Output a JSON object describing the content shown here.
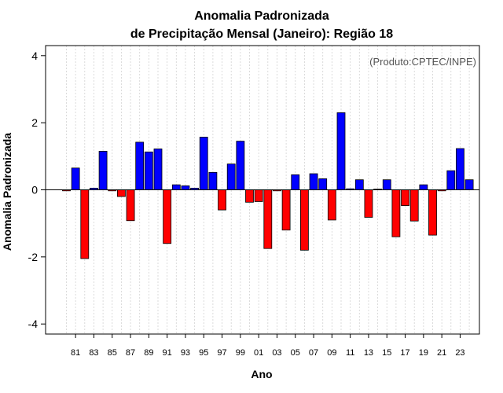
{
  "colors": {
    "positive": "#0000ff",
    "negative": "#ff0000",
    "grid": "#d3d3d3",
    "source_text": "#555555"
  },
  "chart_data": {
    "type": "bar",
    "title": "Anomalia Padronizada",
    "subtitle": "de Precipitação Mensal (Janeiro): Região 18",
    "xlabel": "Ano",
    "ylabel": "Anomalia Padronizada",
    "source_note": "(Produto:CPTEC/INPE)",
    "ylim": [
      -4.3,
      4.3
    ],
    "yticks": [
      -4,
      -2,
      0,
      2,
      4
    ],
    "grid": "vertical dashed",
    "categories": [
      "80",
      "81",
      "82",
      "83",
      "84",
      "85",
      "86",
      "87",
      "88",
      "89",
      "90",
      "91",
      "92",
      "93",
      "94",
      "95",
      "96",
      "97",
      "98",
      "99",
      "00",
      "01",
      "02",
      "03",
      "04",
      "05",
      "06",
      "07",
      "08",
      "09",
      "10",
      "11",
      "12",
      "13",
      "14",
      "15",
      "16",
      "17",
      "18",
      "19",
      "20",
      "21",
      "22",
      "23",
      "24"
    ],
    "xtick_labels": [
      "81",
      "83",
      "85",
      "87",
      "89",
      "91",
      "93",
      "95",
      "97",
      "99",
      "01",
      "03",
      "05",
      "07",
      "09",
      "11",
      "13",
      "15",
      "17",
      "19",
      "21",
      "23"
    ],
    "values": [
      -0.03,
      0.65,
      -2.05,
      0.05,
      1.15,
      -0.03,
      -0.2,
      -0.92,
      1.42,
      1.13,
      1.22,
      -1.6,
      0.15,
      0.12,
      0.05,
      1.57,
      0.52,
      -0.6,
      0.77,
      1.45,
      -0.37,
      -0.35,
      -1.75,
      -0.03,
      -1.2,
      0.45,
      -1.8,
      0.48,
      0.33,
      -0.9,
      2.3,
      0.03,
      0.3,
      -0.82,
      0.02,
      0.3,
      -1.4,
      -0.47,
      -0.93,
      0.15,
      -1.35,
      -0.03,
      0.57,
      1.23,
      0.3
    ]
  }
}
